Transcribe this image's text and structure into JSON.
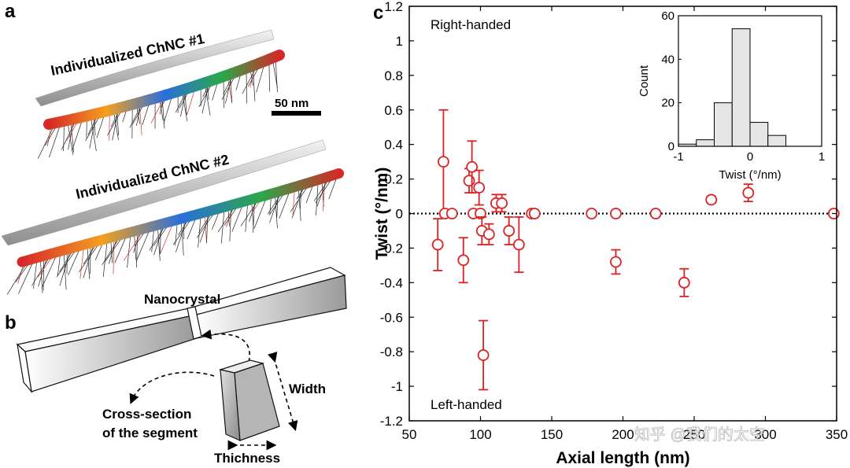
{
  "panels": {
    "a": {
      "label": "a",
      "title1": "Individualized ChNC #1",
      "title2": "Individualized ChNC #2",
      "scalebar": "50 nm"
    },
    "b": {
      "label": "b",
      "nanocrystal": "Nanocrystal",
      "cross_section_line1": "Cross-section",
      "cross_section_line2": "of the segment",
      "width": "Width",
      "thickness": "Thichness"
    },
    "c": {
      "label": "c",
      "right_handed": "Right-handed",
      "left_handed": "Left-handed"
    }
  },
  "watermark": "知乎 @我们的太空",
  "colors": {
    "marker": "#dd2222",
    "hist_fill": "#e6e6e6",
    "axis": "#000000"
  },
  "chart_data": [
    {
      "type": "scatter",
      "title": "",
      "xlabel": "Axial length (nm)",
      "ylabel": "Twist (°/nm)",
      "xlim": [
        50,
        350
      ],
      "ylim": [
        -1.2,
        1.2
      ],
      "xticks": [
        50,
        100,
        150,
        200,
        250,
        300,
        350
      ],
      "yticks": [
        -1.2,
        -1,
        -0.8,
        -0.6,
        -0.4,
        -0.2,
        0,
        0.2,
        0.4,
        0.6,
        0.8,
        1,
        1.2
      ],
      "xtick_labels": [
        "50",
        "100",
        "150",
        "200",
        "250",
        "300",
        "350"
      ],
      "ytick_labels": [
        "-1.2",
        "-1",
        "-0.8",
        "-0.6",
        "-0.4",
        "-0.2",
        "0",
        "0.2",
        "0.4",
        "0.6",
        "0.8",
        "1",
        "1.2"
      ],
      "reference_line": 0,
      "points": [
        {
          "x": 70,
          "y": -0.18,
          "err": 0.15
        },
        {
          "x": 74,
          "y": 0.3,
          "err": 0.3
        },
        {
          "x": 75,
          "y": 0.0,
          "err": 0
        },
        {
          "x": 80,
          "y": 0.0,
          "err": 0
        },
        {
          "x": 88,
          "y": -0.27,
          "err": 0.13
        },
        {
          "x": 92,
          "y": 0.19,
          "err": 0.07
        },
        {
          "x": 94,
          "y": 0.27,
          "err": 0.15
        },
        {
          "x": 95,
          "y": 0.0,
          "err": 0
        },
        {
          "x": 99,
          "y": 0.15,
          "err": 0.1
        },
        {
          "x": 100,
          "y": 0.0,
          "err": 0
        },
        {
          "x": 101,
          "y": -0.1,
          "err": 0.08
        },
        {
          "x": 102,
          "y": -0.82,
          "err": 0.2
        },
        {
          "x": 106,
          "y": -0.12,
          "err": 0.06
        },
        {
          "x": 111,
          "y": 0.06,
          "err": 0.05
        },
        {
          "x": 115,
          "y": 0.06,
          "err": 0.05
        },
        {
          "x": 120,
          "y": -0.1,
          "err": 0.08
        },
        {
          "x": 127,
          "y": -0.18,
          "err": 0.16
        },
        {
          "x": 136,
          "y": 0.0,
          "err": 0
        },
        {
          "x": 138,
          "y": 0.0,
          "err": 0
        },
        {
          "x": 178,
          "y": 0.0,
          "err": 0
        },
        {
          "x": 195,
          "y": 0.0,
          "err": 0
        },
        {
          "x": 195,
          "y": -0.28,
          "err": 0.07
        },
        {
          "x": 223,
          "y": 0.0,
          "err": 0
        },
        {
          "x": 243,
          "y": -0.4,
          "err": 0.08
        },
        {
          "x": 262,
          "y": 0.08,
          "err": 0.02
        },
        {
          "x": 288,
          "y": 0.12,
          "err": 0.05
        },
        {
          "x": 348,
          "y": 0.0,
          "err": 0
        }
      ]
    },
    {
      "type": "bar",
      "title": "",
      "xlabel": "Twist (°/nm)",
      "ylabel": "Count",
      "xlim": [
        -1,
        1
      ],
      "ylim": [
        0,
        60
      ],
      "xticks": [
        -1,
        0,
        1
      ],
      "yticks": [
        0,
        20,
        40,
        60
      ],
      "xtick_labels": [
        "-1",
        "0",
        "1"
      ],
      "ytick_labels": [
        "0",
        "20",
        "40",
        "60"
      ],
      "bin_width": 0.25,
      "bin_centers": [
        -0.875,
        -0.625,
        -0.375,
        -0.125,
        0.125,
        0.375,
        0.625
      ],
      "values": [
        1,
        3,
        20,
        54,
        11,
        5,
        0
      ]
    }
  ]
}
